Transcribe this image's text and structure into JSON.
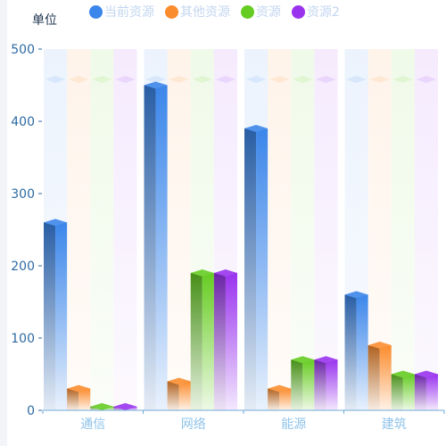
{
  "chart_data": {
    "type": "bar",
    "ylabel": "单位",
    "categories": [
      "通信",
      "网络",
      "能源",
      "建筑"
    ],
    "ylim": [
      0,
      500
    ],
    "yticks": [
      0,
      100,
      200,
      300,
      400,
      500
    ],
    "grid": false,
    "legend_position": "top",
    "series": [
      {
        "name": "当前资源",
        "color": "#3b86ea",
        "values": [
          265,
          455,
          395,
          165
        ]
      },
      {
        "name": "其他资源",
        "color": "#fb8c2e",
        "values": [
          35,
          45,
          35,
          95
        ]
      },
      {
        "name": "资源",
        "color": "#66cc22",
        "values": [
          10,
          195,
          75,
          55
        ]
      },
      {
        "name": "资源2",
        "color": "#9933ee",
        "values": [
          10,
          195,
          75,
          55
        ]
      }
    ]
  }
}
